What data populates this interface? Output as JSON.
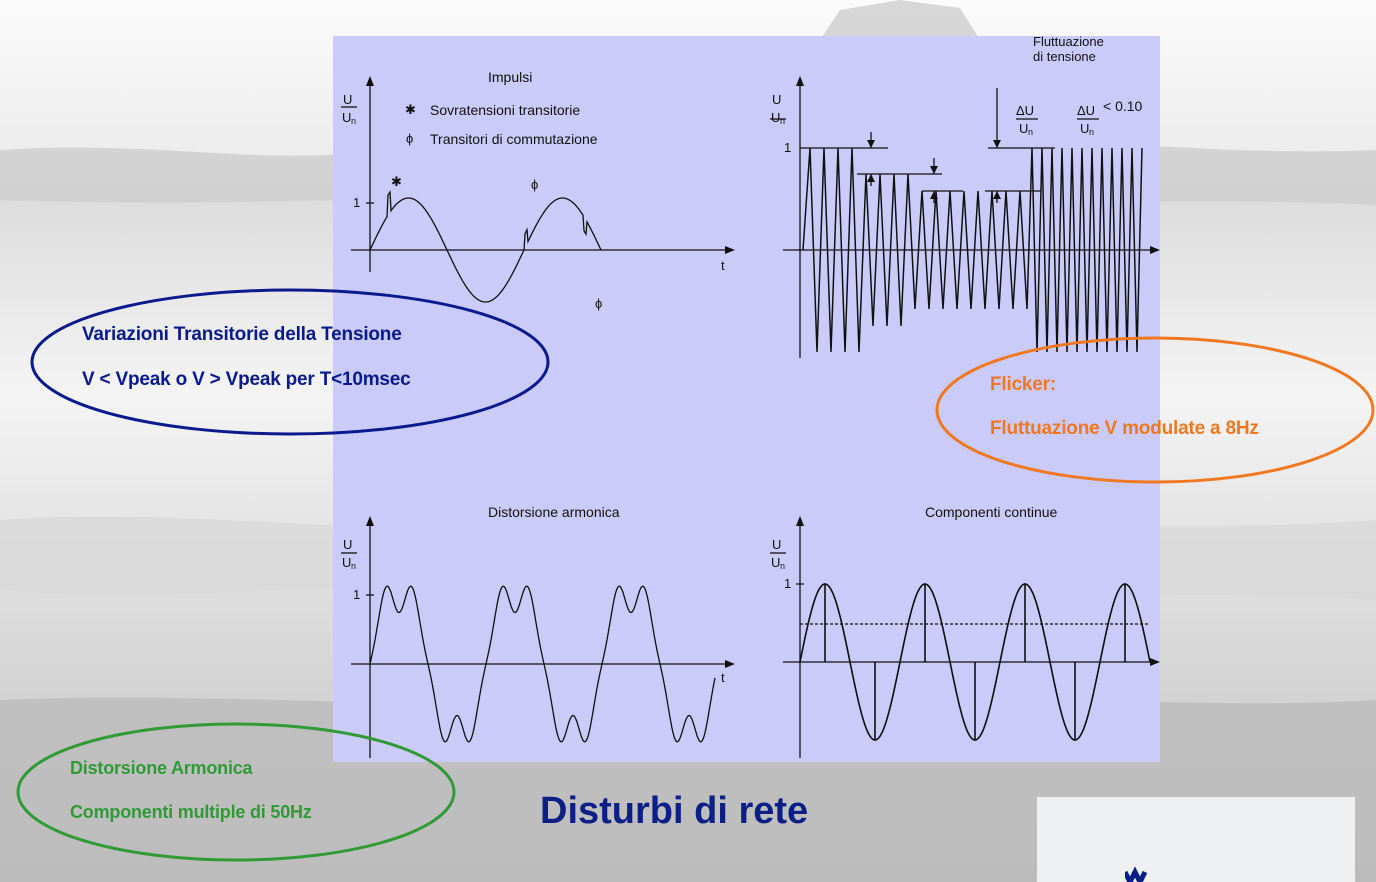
{
  "title": "Disturbi di  rete",
  "colors": {
    "panel": "#cbcbf9",
    "title": "#0c1f86",
    "navy": "#0a1a8c",
    "orange": "#f07820",
    "green": "#2f9a36"
  },
  "callouts": {
    "transitorie": {
      "line1": "Variazioni Transitorie della Tensione",
      "line2": "V < Vpeak o V > Vpeak per T<10msec"
    },
    "flicker": {
      "line1": "Flicker:",
      "line2": "Fluttuazione V modulate a 8Hz"
    },
    "armonica": {
      "line1": "Distorsione Armonica",
      "line2": "Componenti multiple di 50Hz"
    }
  },
  "plots": {
    "impulsi": {
      "title": "Impulsi",
      "legend": [
        {
          "symbol": "✱",
          "text": "Sovratensioni transitorie"
        },
        {
          "symbol": "ϕ",
          "text": "Transitori di commutazione"
        }
      ],
      "marks": [
        "✱",
        "ϕ",
        "ϕ"
      ],
      "ylabel_num": "U",
      "ylabel_den": "U",
      "ylabel_sub": "n",
      "ytick": "1",
      "xlabel": "t"
    },
    "fluttuazione": {
      "title_line1": "Fluttuazione",
      "title_line2": "di tensione",
      "dU_num": "ΔU",
      "dU_den": "U",
      "dU_sub": "n",
      "ratio_text": "< 0.10",
      "ylabel_num": "U",
      "ylabel_den": "U",
      "ylabel_sub": "n",
      "ytick": "1"
    },
    "armonica": {
      "title": "Distorsione armonica",
      "ylabel_num": "U",
      "ylabel_den": "U",
      "ylabel_sub": "n",
      "ytick": "1",
      "xlabel": "t"
    },
    "continue": {
      "title": "Componenti continue",
      "ylabel_num": "U",
      "ylabel_den": "U",
      "ylabel_sub": "n",
      "ytick": "1"
    }
  }
}
